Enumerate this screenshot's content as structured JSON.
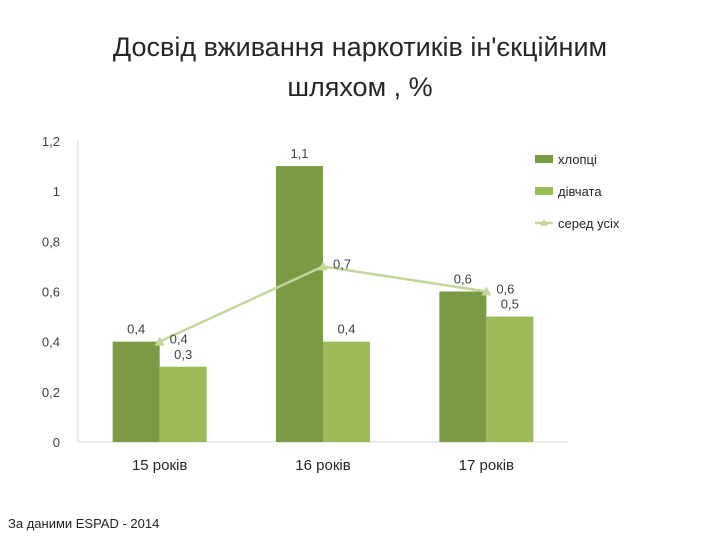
{
  "title_line1": "Досвід вживання наркотиків ін'єкційним",
  "title_line2": "шляхом , %",
  "source_note": "За даними ESPAD - 2014",
  "chart_data": {
    "type": "bar",
    "title": "Досвід вживання наркотиків ін'єкційним шляхом , %",
    "categories": [
      "15 років",
      "16 років",
      "17 років"
    ],
    "series": [
      {
        "name": "хлопці",
        "kind": "bar",
        "color": "#7a9a44",
        "values": [
          0.4,
          1.1,
          0.6
        ],
        "labels": [
          "0,4",
          "1,1",
          "0,6"
        ]
      },
      {
        "name": "дівчата",
        "kind": "bar",
        "color": "#9bbb59",
        "values": [
          0.3,
          0.4,
          0.5
        ],
        "labels": [
          "0,3",
          "0,4",
          "0,5"
        ]
      },
      {
        "name": "серед усіх",
        "kind": "line",
        "color": "#c4d79b",
        "values": [
          0.4,
          0.7,
          0.6
        ],
        "labels": [
          "0,4",
          "0,7",
          "0,6"
        ]
      }
    ],
    "ylim": [
      0,
      1.2
    ],
    "yticks": [
      0,
      0.2,
      0.4,
      0.6,
      0.8,
      1,
      1.2
    ],
    "ytick_labels": [
      "0",
      "0,2",
      "0,4",
      "0,6",
      "0,8",
      "1",
      "1,2"
    ],
    "xlabel": "",
    "ylabel": "",
    "grid": false,
    "legend_position": "top-right"
  }
}
